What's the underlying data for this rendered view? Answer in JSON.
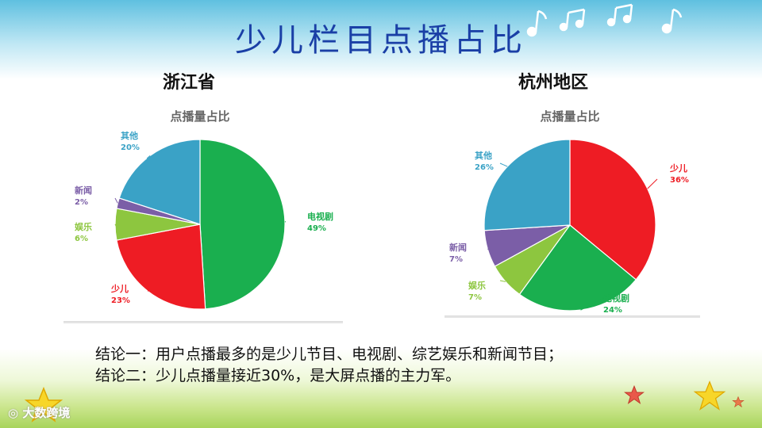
{
  "slide": {
    "title": "少儿栏目点播占比",
    "conclusions": [
      "结论一：用户点播最多的是少儿节目、电视剧、综艺娱乐和新闻节目；",
      "结论二：少儿点播量接近30%，是大屏点播的主力军。"
    ],
    "logo_text": "大数跨境"
  },
  "colors": {
    "tv": "#1aaf4f",
    "kids": "#ee1c24",
    "ent": "#8dc63f",
    "news": "#7b5ea7",
    "other": "#3aa2c6",
    "title_blue": "#1a3fa6"
  },
  "chart_data": [
    {
      "type": "pie",
      "region": "浙江省",
      "title": "点播量占比",
      "slices": [
        {
          "label": "电视剧",
          "value": 49,
          "pct_text": "49%",
          "color": "#1aaf4f"
        },
        {
          "label": "少儿",
          "value": 23,
          "pct_text": "23%",
          "color": "#ee1c24"
        },
        {
          "label": "娱乐",
          "value": 6,
          "pct_text": "6%",
          "color": "#8dc63f"
        },
        {
          "label": "新闻",
          "value": 2,
          "pct_text": "2%",
          "color": "#7b5ea7"
        },
        {
          "label": "其他",
          "value": 20,
          "pct_text": "20%",
          "color": "#3aa2c6"
        }
      ]
    },
    {
      "type": "pie",
      "region": "杭州地区",
      "title": "点播量占比",
      "slices": [
        {
          "label": "少儿",
          "value": 36,
          "pct_text": "36%",
          "color": "#ee1c24"
        },
        {
          "label": "电视剧",
          "value": 24,
          "pct_text": "24%",
          "color": "#1aaf4f"
        },
        {
          "label": "娱乐",
          "value": 7,
          "pct_text": "7%",
          "color": "#8dc63f"
        },
        {
          "label": "新闻",
          "value": 7,
          "pct_text": "7%",
          "color": "#7b5ea7"
        },
        {
          "label": "其他",
          "value": 26,
          "pct_text": "26%",
          "color": "#3aa2c6"
        }
      ]
    }
  ]
}
